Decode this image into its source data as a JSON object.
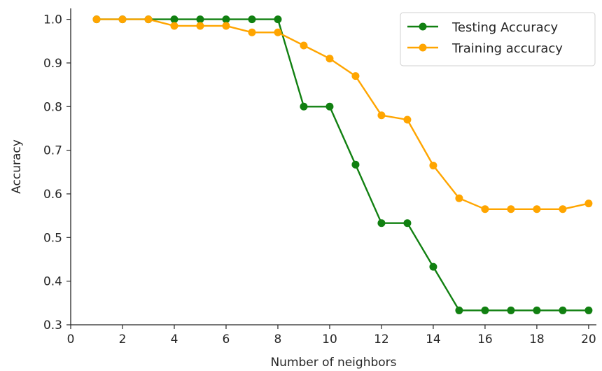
{
  "chart_data": {
    "type": "line",
    "title": "",
    "xlabel": "Number of neighbors",
    "ylabel": "Accuracy",
    "xlim": [
      0,
      20.3
    ],
    "ylim": [
      0.3,
      1.025
    ],
    "x": [
      1,
      2,
      3,
      4,
      5,
      6,
      7,
      8,
      9,
      10,
      11,
      12,
      13,
      14,
      15,
      16,
      17,
      18,
      19,
      20
    ],
    "x_ticks": [
      0,
      2,
      4,
      6,
      8,
      10,
      12,
      14,
      16,
      18,
      20
    ],
    "x_tick_labels": [
      "0",
      "2",
      "4",
      "6",
      "8",
      "10",
      "12",
      "14",
      "16",
      "18",
      "20"
    ],
    "y_ticks": [
      0.3,
      0.4,
      0.5,
      0.6,
      0.7,
      0.8,
      0.9,
      1.0
    ],
    "y_tick_labels": [
      "0.3",
      "0.4",
      "0.5",
      "0.6",
      "0.7",
      "0.8",
      "0.9",
      "1.0"
    ],
    "grid": false,
    "legend_position": "top-right",
    "series": [
      {
        "name": "Testing Accuracy",
        "color": "#118011",
        "marker": "circle",
        "values": [
          1.0,
          1.0,
          1.0,
          1.0,
          1.0,
          1.0,
          1.0,
          1.0,
          0.8,
          0.8,
          0.667,
          0.533,
          0.533,
          0.433,
          0.333,
          0.333,
          0.333,
          0.333,
          0.333,
          0.333
        ]
      },
      {
        "name": "Training accuracy",
        "color": "#ffa500",
        "marker": "circle",
        "values": [
          1.0,
          1.0,
          1.0,
          0.985,
          0.985,
          0.985,
          0.97,
          0.97,
          0.94,
          0.91,
          0.87,
          0.78,
          0.77,
          0.665,
          0.59,
          0.565,
          0.565,
          0.565,
          0.565,
          0.578
        ]
      }
    ]
  }
}
